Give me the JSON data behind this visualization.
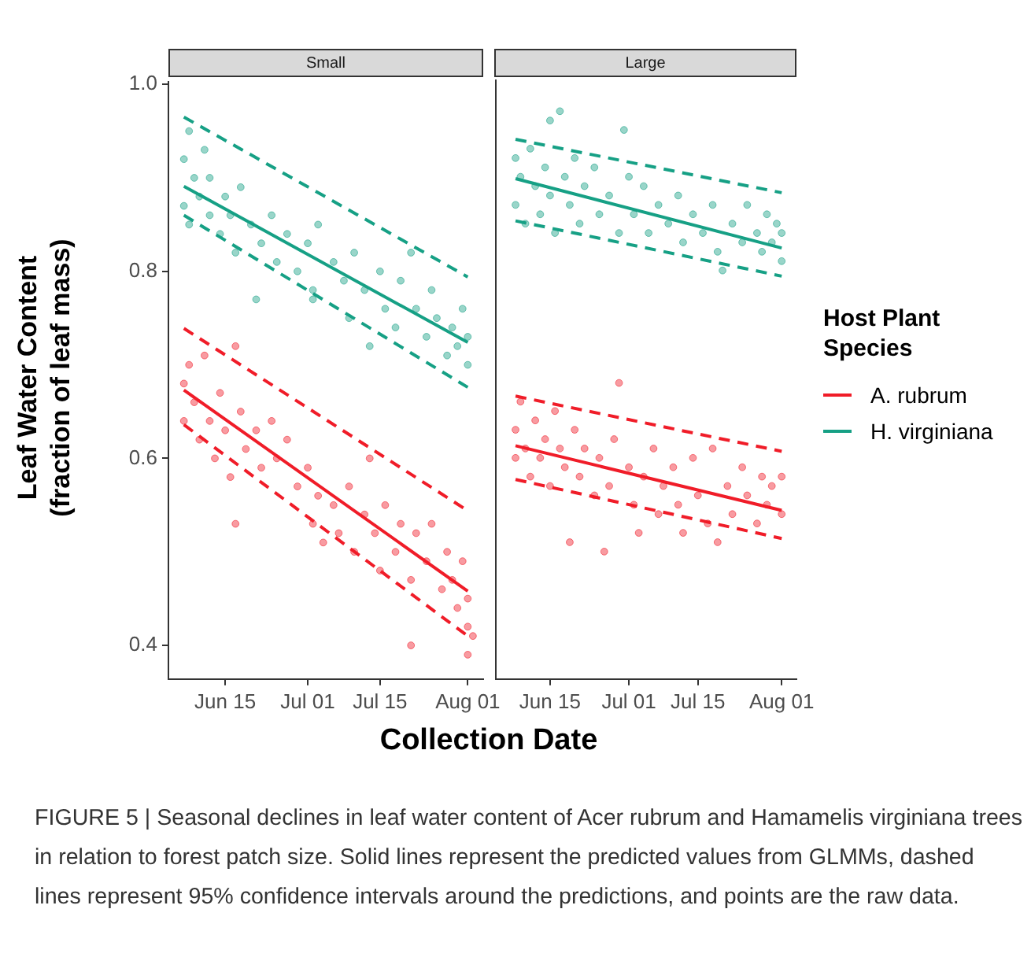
{
  "chart_data": [
    {
      "type": "scatter",
      "title": "Small",
      "legend": "right",
      "legend_title": "Host Plant Species",
      "xlabel": "Collection Date",
      "ylabel": "Leaf Water Content\n(fraction of leaf mass)",
      "xlim": [
        "--06-04",
        "--08-04"
      ],
      "xticks": [
        {
          "value": "--06-15",
          "label": "Jun 15"
        },
        {
          "value": "--07-01",
          "label": "Jul 01"
        },
        {
          "value": "--07-15",
          "label": "Jul 15"
        },
        {
          "value": "--08-01",
          "label": "Aug 01"
        }
      ],
      "ylim": [
        0.364,
        1.003
      ],
      "yticks": [
        0.4,
        0.6,
        0.8,
        {
          "value": 1,
          "label": "1.0"
        }
      ],
      "annotations": [
        "FIGURE 5 | Seasonal declines in leaf water content of Acer rubrum and Hamamelis virginiana trees in relation to forest patch size. Solid lines represent the predicted values from GLMMs, dashed lines represent 95% confidence intervals around the predictions, and points are the raw data."
      ],
      "series": [
        {
          "type": "scatter",
          "marker": "circle",
          "color": "#16a085",
          "x": [
            "--06-07",
            "--06-07",
            "--06-08",
            "--06-08",
            "--06-09",
            "--06-10",
            "--06-11",
            "--06-12",
            "--06-12",
            "--06-14",
            "--06-15",
            "--06-16",
            "--06-17",
            "--06-18",
            "--06-21",
            "--06-20",
            "--06-22",
            "--06-24",
            "--06-25",
            "--06-27",
            "--06-29",
            "--07-01",
            "--07-02",
            "--07-02",
            "--07-03",
            "--07-06",
            "--07-08",
            "--07-09",
            "--07-10",
            "--07-12",
            "--07-13",
            "--07-15",
            "--07-16",
            "--07-18",
            "--07-19",
            "--07-21",
            "--07-22",
            "--07-24",
            "--07-25",
            "--07-26",
            "--07-28",
            "--07-29",
            "--07-30",
            "--07-31",
            "--08-01",
            "--08-01"
          ],
          "values": [
            0.87,
            0.92,
            0.95,
            0.85,
            0.9,
            0.88,
            0.93,
            0.86,
            0.9,
            0.84,
            0.88,
            0.86,
            0.82,
            0.89,
            0.77,
            0.85,
            0.83,
            0.86,
            0.81,
            0.84,
            0.8,
            0.83,
            0.78,
            0.77,
            0.85,
            0.81,
            0.79,
            0.75,
            0.82,
            0.78,
            0.72,
            0.8,
            0.76,
            0.74,
            0.79,
            0.82,
            0.76,
            0.73,
            0.78,
            0.75,
            0.71,
            0.74,
            0.72,
            0.76,
            0.73,
            0.7
          ]
        },
        {
          "type": "scatter",
          "marker": "circle",
          "color": "#f01c28",
          "x": [
            "--06-07",
            "--06-07",
            "--06-08",
            "--06-09",
            "--06-10",
            "--06-11",
            "--06-12",
            "--06-13",
            "--06-14",
            "--06-15",
            "--06-16",
            "--06-17",
            "--06-17",
            "--06-18",
            "--06-19",
            "--06-21",
            "--06-22",
            "--06-24",
            "--06-25",
            "--06-27",
            "--06-29",
            "--07-01",
            "--07-02",
            "--07-03",
            "--07-04",
            "--07-06",
            "--07-07",
            "--07-09",
            "--07-10",
            "--07-12",
            "--07-13",
            "--07-14",
            "--07-15",
            "--07-16",
            "--07-18",
            "--07-19",
            "--07-21",
            "--07-22",
            "--07-21",
            "--07-24",
            "--07-25",
            "--07-27",
            "--07-28",
            "--07-29",
            "--07-30",
            "--07-31",
            "--08-01",
            "--08-01",
            "--08-01",
            "--08-02"
          ],
          "values": [
            0.68,
            0.64,
            0.7,
            0.66,
            0.62,
            0.71,
            0.64,
            0.6,
            0.67,
            0.63,
            0.58,
            0.72,
            0.53,
            0.65,
            0.61,
            0.63,
            0.59,
            0.64,
            0.6,
            0.62,
            0.57,
            0.59,
            0.53,
            0.56,
            0.51,
            0.55,
            0.52,
            0.57,
            0.5,
            0.54,
            0.6,
            0.52,
            0.48,
            0.55,
            0.5,
            0.53,
            0.47,
            0.52,
            0.4,
            0.49,
            0.53,
            0.46,
            0.5,
            0.47,
            0.44,
            0.49,
            0.45,
            0.42,
            0.39,
            0.41
          ]
        },
        {
          "type": "line",
          "name": "A. rubrum",
          "color": "#f01c28",
          "x": [
            "--06-07",
            "--08-01"
          ],
          "values": [
            0.673,
            0.458
          ]
        },
        {
          "type": "line",
          "name": "H. virginiana",
          "color": "#16a085",
          "x": [
            "--06-07",
            "--08-01"
          ],
          "values": [
            0.891,
            0.724
          ]
        },
        {
          "type": "line",
          "line_style": "dashed",
          "color": "#f01c28",
          "x": [
            "--06-07",
            "--08-01"
          ],
          "values": [
            0.739,
            0.544
          ]
        },
        {
          "type": "line",
          "line_style": "dashed",
          "color": "#f01c28",
          "x": [
            "--06-07",
            "--08-01"
          ],
          "values": [
            0.636,
            0.41
          ]
        },
        {
          "type": "line",
          "line_style": "dashed",
          "color": "#16a085",
          "x": [
            "--06-07",
            "--08-01"
          ],
          "values": [
            0.965,
            0.794
          ]
        },
        {
          "type": "line",
          "line_style": "dashed",
          "color": "#16a085",
          "x": [
            "--06-07",
            "--08-01"
          ],
          "values": [
            0.86,
            0.676
          ]
        }
      ]
    },
    {
      "type": "scatter",
      "title": "Large",
      "legend": "right",
      "tick_labels": "x",
      "xlim": [
        "--06-04",
        "--08-04"
      ],
      "xticks": [
        {
          "value": "--06-15",
          "label": "Jun 15"
        },
        {
          "value": "--07-01",
          "label": "Jul 01"
        },
        {
          "value": "--07-15",
          "label": "Jul 15"
        },
        {
          "value": "--08-01",
          "label": "Aug 01"
        }
      ],
      "ylim": [
        0.364,
        1.003
      ],
      "yticks": [
        0.4,
        0.6,
        0.8,
        {
          "value": 1,
          "label": "1.0"
        }
      ],
      "series": [
        {
          "type": "scatter",
          "marker": "circle",
          "color": "#16a085",
          "x": [
            "--06-08",
            "--06-08",
            "--06-09",
            "--06-10",
            "--06-11",
            "--06-12",
            "--06-13",
            "--06-14",
            "--06-15",
            "--06-15",
            "--06-16",
            "--06-17",
            "--06-18",
            "--06-19",
            "--06-20",
            "--06-21",
            "--06-22",
            "--06-24",
            "--06-25",
            "--06-27",
            "--06-29",
            "--06-30",
            "--07-01",
            "--07-02",
            "--07-04",
            "--07-05",
            "--07-07",
            "--07-09",
            "--07-11",
            "--07-12",
            "--07-14",
            "--07-16",
            "--07-18",
            "--07-19",
            "--07-20",
            "--07-22",
            "--07-24",
            "--07-25",
            "--07-27",
            "--07-28",
            "--07-29",
            "--07-30",
            "--07-31",
            "--08-01",
            "--08-01"
          ],
          "values": [
            0.92,
            0.87,
            0.9,
            0.85,
            0.93,
            0.89,
            0.86,
            0.91,
            0.96,
            0.88,
            0.84,
            0.97,
            0.9,
            0.87,
            0.92,
            0.85,
            0.89,
            0.91,
            0.86,
            0.88,
            0.84,
            0.95,
            0.9,
            0.86,
            0.89,
            0.84,
            0.87,
            0.85,
            0.88,
            0.83,
            0.86,
            0.84,
            0.87,
            0.82,
            0.8,
            0.85,
            0.83,
            0.87,
            0.84,
            0.82,
            0.86,
            0.83,
            0.85,
            0.81,
            0.84
          ]
        },
        {
          "type": "scatter",
          "marker": "circle",
          "color": "#f01c28",
          "x": [
            "--06-08",
            "--06-08",
            "--06-09",
            "--06-10",
            "--06-11",
            "--06-12",
            "--06-13",
            "--06-14",
            "--06-15",
            "--06-16",
            "--06-17",
            "--06-18",
            "--06-19",
            "--06-20",
            "--06-21",
            "--06-22",
            "--06-24",
            "--06-25",
            "--06-26",
            "--06-27",
            "--06-28",
            "--06-29",
            "--07-01",
            "--07-02",
            "--07-03",
            "--07-04",
            "--07-06",
            "--07-07",
            "--07-08",
            "--07-10",
            "--07-11",
            "--07-12",
            "--07-14",
            "--07-15",
            "--07-17",
            "--07-18",
            "--07-19",
            "--07-21",
            "--07-22",
            "--07-24",
            "--07-25",
            "--07-27",
            "--07-28",
            "--07-29",
            "--07-30",
            "--08-01",
            "--08-01"
          ],
          "values": [
            0.63,
            0.6,
            0.66,
            0.61,
            0.58,
            0.64,
            0.6,
            0.62,
            0.57,
            0.65,
            0.61,
            0.59,
            0.51,
            0.63,
            0.58,
            0.61,
            0.56,
            0.6,
            0.5,
            0.57,
            0.62,
            0.68,
            0.59,
            0.55,
            0.52,
            0.58,
            0.61,
            0.54,
            0.57,
            0.59,
            0.55,
            0.52,
            0.6,
            0.56,
            0.53,
            0.61,
            0.51,
            0.57,
            0.54,
            0.59,
            0.56,
            0.53,
            0.58,
            0.55,
            0.57,
            0.54,
            0.58
          ]
        },
        {
          "type": "line",
          "name": "A. rubrum",
          "color": "#f01c28",
          "x": [
            "--06-08",
            "--08-01"
          ],
          "values": [
            0.613,
            0.544
          ]
        },
        {
          "type": "line",
          "name": "H. virginiana",
          "color": "#16a085",
          "x": [
            "--06-08",
            "--08-01"
          ],
          "values": [
            0.898,
            0.824
          ]
        },
        {
          "type": "line",
          "line_style": "dashed",
          "color": "#f01c28",
          "x": [
            "--06-08",
            "--08-01"
          ],
          "values": [
            0.666,
            0.607
          ]
        },
        {
          "type": "line",
          "line_style": "dashed",
          "color": "#f01c28",
          "x": [
            "--06-08",
            "--08-01"
          ],
          "values": [
            0.577,
            0.514
          ]
        },
        {
          "type": "line",
          "line_style": "dashed",
          "color": "#16a085",
          "x": [
            "--06-08",
            "--08-01"
          ],
          "values": [
            0.94,
            0.883
          ]
        },
        {
          "type": "line",
          "line_style": "dashed",
          "color": "#16a085",
          "x": [
            "--06-08",
            "--08-01"
          ],
          "values": [
            0.853,
            0.794
          ]
        }
      ]
    }
  ]
}
